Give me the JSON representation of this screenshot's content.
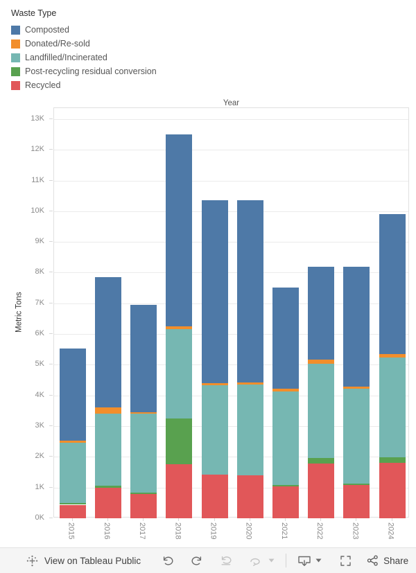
{
  "legend": {
    "title": "Waste Type",
    "items": [
      {
        "label": "Composted",
        "color": "#4e79a7"
      },
      {
        "label": "Donated/Re-sold",
        "color": "#f28e2b"
      },
      {
        "label": "Landfilled/Incinerated",
        "color": "#76b7b2"
      },
      {
        "label": "Post-recycling residual conversion",
        "color": "#59a14f"
      },
      {
        "label": "Recycled",
        "color": "#e15759"
      }
    ]
  },
  "chart_data": {
    "type": "bar",
    "stacked": true,
    "title": "Year",
    "xlabel": "Year",
    "ylabel": "Metric Tons",
    "ylim": [
      0,
      13000
    ],
    "grid": true,
    "legend_position": "top-left",
    "y_ticks": [
      "0K",
      "1K",
      "2K",
      "3K",
      "4K",
      "5K",
      "6K",
      "7K",
      "8K",
      "9K",
      "10K",
      "11K",
      "12K",
      "13K"
    ],
    "categories": [
      "2015",
      "2016",
      "2017",
      "2018",
      "2019",
      "2020",
      "2021",
      "2022",
      "2023",
      "2024"
    ],
    "series": [
      {
        "name": "Recycled",
        "color": "#e15759",
        "values": [
          440,
          1000,
          780,
          1750,
          1420,
          1400,
          1030,
          1780,
          1080,
          1810
        ]
      },
      {
        "name": "Post-recycling residual conversion",
        "color": "#59a14f",
        "values": [
          50,
          50,
          50,
          1500,
          0,
          0,
          50,
          190,
          50,
          170
        ]
      },
      {
        "name": "Landfilled/Incinerated",
        "color": "#76b7b2",
        "values": [
          1980,
          2350,
          2570,
          2900,
          2910,
          2950,
          3060,
          3070,
          3080,
          3250
        ]
      },
      {
        "name": "Donated/Re-sold",
        "color": "#f28e2b",
        "values": [
          50,
          220,
          50,
          100,
          70,
          70,
          70,
          120,
          80,
          110
        ]
      },
      {
        "name": "Composted",
        "color": "#4e79a7",
        "values": [
          3000,
          4230,
          3500,
          6250,
          5950,
          5930,
          3310,
          3040,
          3910,
          4560
        ]
      }
    ],
    "totals": [
      5520,
      7850,
      6950,
      12500,
      10350,
      10350,
      7520,
      8200,
      8200,
      9900
    ]
  },
  "toolbar": {
    "view_label": "View on Tableau Public",
    "share_label": "Share",
    "icons": [
      "tableau-logo-icon",
      "undo-icon",
      "redo-icon",
      "replay-icon",
      "refresh-icon",
      "caret-down-icon",
      "download-device-icon",
      "fullscreen-icon",
      "share-icon"
    ],
    "icon_color_enabled": "#6b6b6b",
    "icon_color_disabled": "#c3c3c3"
  }
}
